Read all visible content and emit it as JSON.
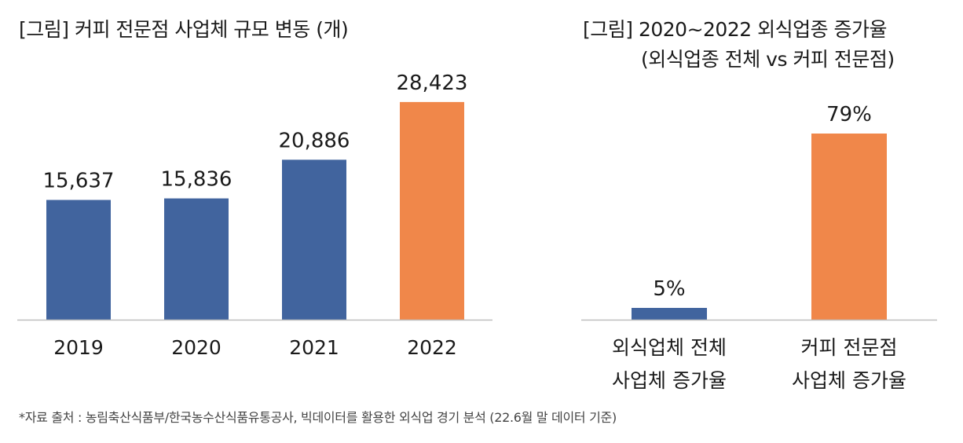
{
  "chart_data": [
    {
      "type": "bar",
      "title": "[그림] 커피 전문점 사업체 규모 변동 (개)",
      "categories": [
        "2019",
        "2020",
        "2021",
        "2022"
      ],
      "values": [
        15637,
        15836,
        20886,
        28423
      ],
      "value_labels": [
        "15,637",
        "15,836",
        "20,886",
        "28,423"
      ],
      "bar_colors": [
        "#41649e",
        "#41649e",
        "#41649e",
        "#f0874a"
      ],
      "xlabel": "",
      "ylabel": "",
      "ylim": [
        0,
        32000
      ],
      "grid": false
    },
    {
      "type": "bar",
      "title_line1": "[그림] 2020~2022 외식업종 증가율",
      "title_line2": "(외식업종 전체 vs 커피 전문점)",
      "categories": [
        {
          "line1": "외식업체 전체",
          "line2": "사업체 증가율"
        },
        {
          "line1": "커피 전문점",
          "line2": "사업체 증가율"
        }
      ],
      "values": [
        5,
        79
      ],
      "value_labels": [
        "5%",
        "79%"
      ],
      "bar_colors": [
        "#41649e",
        "#f0874a"
      ],
      "xlabel": "",
      "ylabel": "",
      "ylim": [
        0,
        100
      ],
      "grid": false
    }
  ],
  "footnote": "*자료 출처 : 농림축산식품부/한국농수산식품유통공사, 빅데이터를 활용한 외식업 경기 분석 (22.6월 말 데이터 기준)"
}
